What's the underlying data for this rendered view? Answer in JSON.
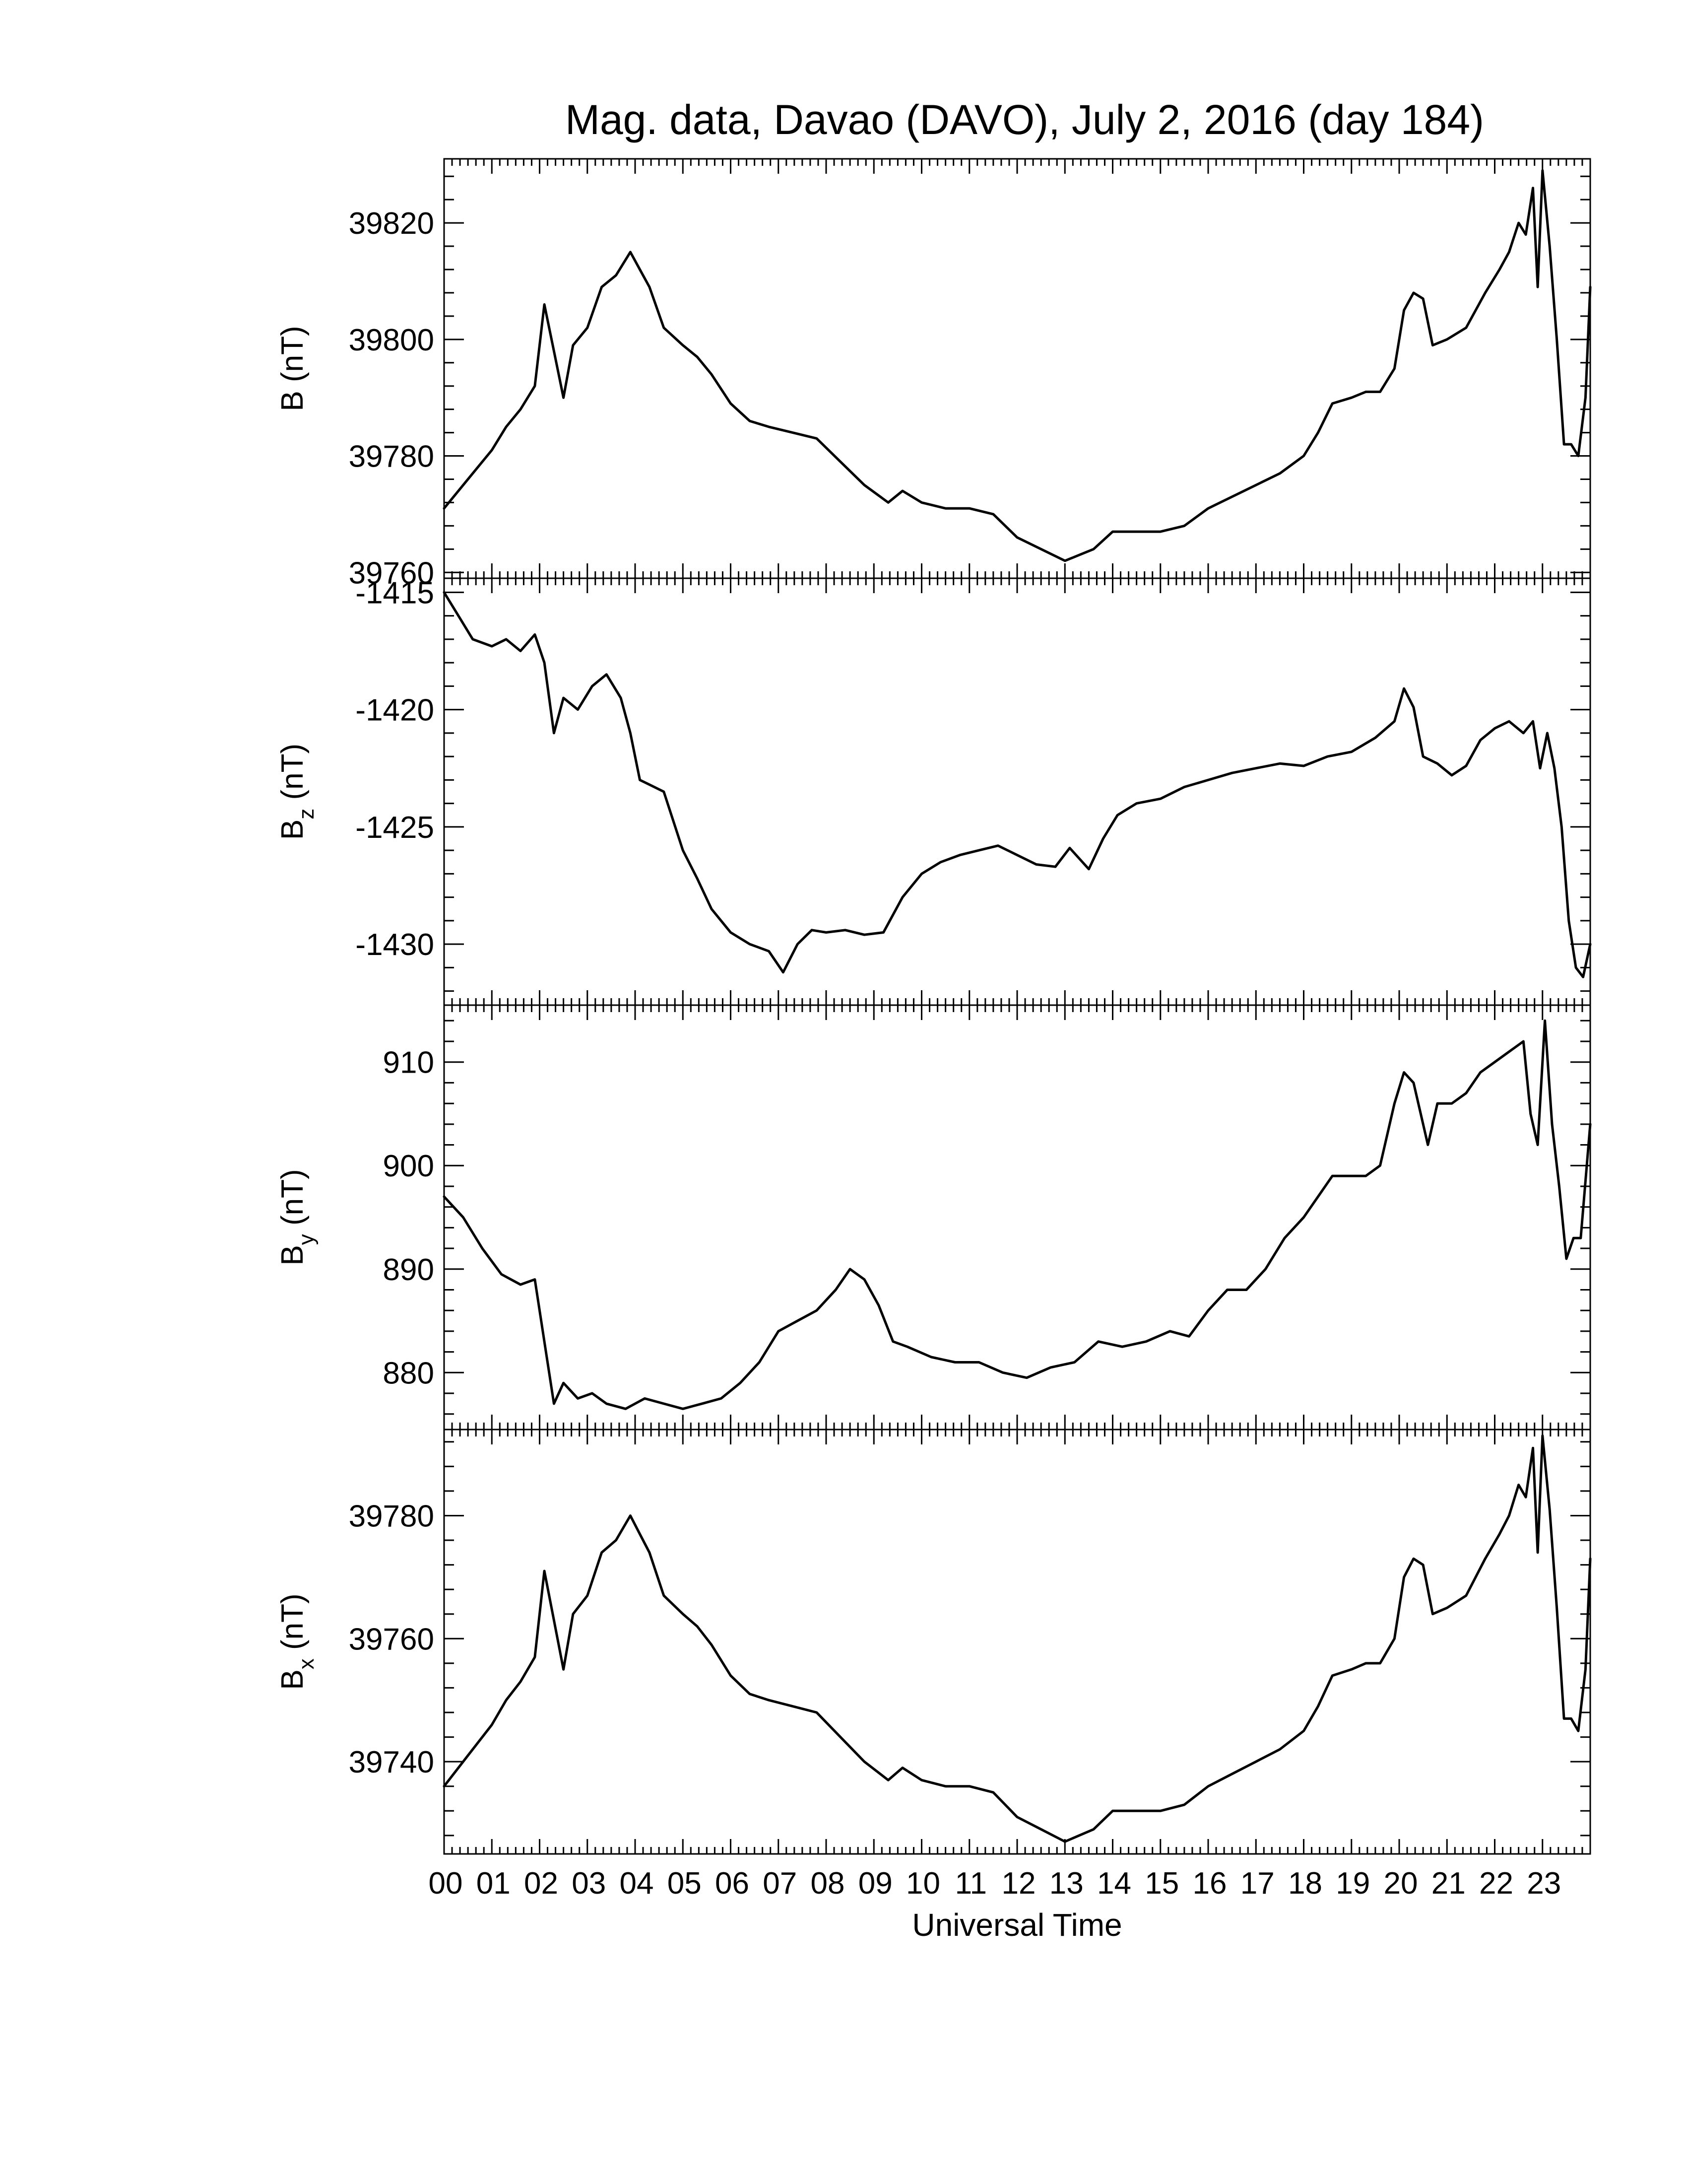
{
  "figure": {
    "title": "Mag. data, Davao (DAVO), July 2, 2016 (day 184)",
    "xlabel": "Universal Time",
    "x_tick_labels": [
      "00",
      "01",
      "02",
      "03",
      "04",
      "05",
      "06",
      "07",
      "08",
      "09",
      "10",
      "11",
      "12",
      "13",
      "14",
      "15",
      "16",
      "17",
      "18",
      "19",
      "20",
      "21",
      "22",
      "23"
    ]
  },
  "chart_data": [
    {
      "type": "line",
      "ylabel": "B (nT)",
      "xlim": [
        0,
        24
      ],
      "ylim": [
        39759,
        39831
      ],
      "yticks": [
        39760,
        39780,
        39800,
        39820
      ],
      "series": [
        {
          "x": [
            0,
            0.5,
            1,
            1.3,
            1.6,
            1.9,
            2.1,
            2.3,
            2.5,
            2.7,
            3.0,
            3.3,
            3.6,
            3.9,
            4.1,
            4.3,
            4.6,
            5.0,
            5.3,
            5.6,
            6.0,
            6.4,
            6.8,
            7.3,
            7.8,
            8.3,
            8.8,
            9.3,
            9.6,
            10,
            10.5,
            11,
            11.5,
            12,
            12.5,
            13,
            13.3,
            13.6,
            14,
            14.5,
            15,
            15.5,
            16,
            16.5,
            17,
            17.5,
            18,
            18.3,
            18.6,
            19,
            19.3,
            19.6,
            19.9,
            20.1,
            20.3,
            20.5,
            20.7,
            21,
            21.4,
            21.8,
            22.1,
            22.3,
            22.5,
            22.65,
            22.8,
            22.9,
            23.0,
            23.15,
            23.3,
            23.45,
            23.6,
            23.75,
            23.9,
            24
          ],
          "values": [
            39771,
            39776,
            39781,
            39785,
            39788,
            39792,
            39806,
            39798,
            39790,
            39799,
            39802,
            39809,
            39811,
            39815,
            39812,
            39809,
            39802,
            39799,
            39797,
            39794,
            39789,
            39786,
            39785,
            39784,
            39783,
            39779,
            39775,
            39772,
            39774,
            39772,
            39771,
            39771,
            39770,
            39766,
            39764,
            39762,
            39763,
            39764,
            39767,
            39767,
            39767,
            39768,
            39771,
            39773,
            39775,
            39777,
            39780,
            39784,
            39789,
            39790,
            39791,
            39791,
            39795,
            39805,
            39808,
            39807,
            39799,
            39800,
            39802,
            39808,
            39812,
            39815,
            39820,
            39818,
            39826,
            39809,
            39829,
            39816,
            39800,
            39782,
            39782,
            39780,
            39790,
            39809
          ]
        }
      ]
    },
    {
      "type": "line",
      "ylabel": "Bz (nT)",
      "xlim": [
        0,
        24
      ],
      "ylim": [
        -1432.6,
        -1414.4
      ],
      "yticks": [
        -1415,
        -1420,
        -1425,
        -1430
      ],
      "series": [
        {
          "x": [
            0,
            0.3,
            0.6,
            1.0,
            1.3,
            1.6,
            1.9,
            2.1,
            2.3,
            2.5,
            2.8,
            3.1,
            3.4,
            3.7,
            3.9,
            4.1,
            4.3,
            4.6,
            5.0,
            5.3,
            5.6,
            6.0,
            6.4,
            6.8,
            7.1,
            7.4,
            7.7,
            8.0,
            8.4,
            8.8,
            9.2,
            9.6,
            10,
            10.4,
            10.8,
            11.2,
            11.6,
            12,
            12.4,
            12.8,
            13.1,
            13.5,
            13.8,
            14.1,
            14.5,
            15,
            15.5,
            16,
            16.5,
            17,
            17.5,
            18,
            18.5,
            19,
            19.5,
            19.9,
            20.1,
            20.3,
            20.5,
            20.8,
            21.1,
            21.4,
            21.7,
            22.0,
            22.3,
            22.6,
            22.8,
            22.95,
            23.1,
            23.25,
            23.4,
            23.55,
            23.7,
            23.85,
            24
          ],
          "values": [
            -1415,
            -1416,
            -1417,
            -1417.3,
            -1417,
            -1417.5,
            -1416.8,
            -1418,
            -1421,
            -1419.5,
            -1420,
            -1419,
            -1418.5,
            -1419.5,
            -1421,
            -1423,
            -1423.2,
            -1423.5,
            -1426,
            -1427.2,
            -1428.5,
            -1429.5,
            -1430,
            -1430.3,
            -1431.2,
            -1430,
            -1429.4,
            -1429.5,
            -1429.4,
            -1429.6,
            -1429.5,
            -1428,
            -1427,
            -1426.5,
            -1426.2,
            -1426,
            -1425.8,
            -1426.2,
            -1426.6,
            -1426.7,
            -1425.9,
            -1426.8,
            -1425.5,
            -1424.5,
            -1424,
            -1423.8,
            -1423.3,
            -1423,
            -1422.7,
            -1422.5,
            -1422.3,
            -1422.4,
            -1422,
            -1421.8,
            -1421.2,
            -1420.5,
            -1419.1,
            -1419.9,
            -1422,
            -1422.3,
            -1422.8,
            -1422.4,
            -1421.3,
            -1420.8,
            -1420.5,
            -1421,
            -1420.5,
            -1422.5,
            -1421,
            -1422.5,
            -1425,
            -1429,
            -1431,
            -1431.4,
            -1430
          ]
        }
      ]
    },
    {
      "type": "line",
      "ylabel": "By (nT)",
      "xlim": [
        0,
        24
      ],
      "ylim": [
        874.5,
        915.5
      ],
      "yticks": [
        880,
        890,
        900,
        910
      ],
      "series": [
        {
          "x": [
            0,
            0.4,
            0.8,
            1.2,
            1.6,
            1.9,
            2.1,
            2.3,
            2.5,
            2.8,
            3.1,
            3.4,
            3.8,
            4.2,
            4.6,
            5.0,
            5.4,
            5.8,
            6.2,
            6.6,
            7.0,
            7.4,
            7.8,
            8.2,
            8.5,
            8.8,
            9.1,
            9.4,
            9.7,
            10.2,
            10.7,
            11.2,
            11.7,
            12.2,
            12.7,
            13.2,
            13.7,
            14.2,
            14.7,
            15.2,
            15.6,
            16,
            16.4,
            16.8,
            17.2,
            17.6,
            18.0,
            18.3,
            18.6,
            19.0,
            19.3,
            19.6,
            19.9,
            20.1,
            20.3,
            20.6,
            20.8,
            21.1,
            21.4,
            21.7,
            22.0,
            22.3,
            22.6,
            22.75,
            22.9,
            23.05,
            23.2,
            23.35,
            23.5,
            23.65,
            23.8,
            24
          ],
          "values": [
            897,
            895,
            892,
            889.5,
            888.5,
            889,
            883,
            877,
            879,
            877.5,
            878,
            877,
            876.5,
            877.5,
            877,
            876.5,
            877,
            877.5,
            879,
            881,
            884,
            885,
            886,
            888,
            890,
            889,
            886.5,
            883,
            882.5,
            881.5,
            881,
            881,
            880,
            879.5,
            880.5,
            881,
            883,
            882.5,
            883,
            884,
            883.5,
            886,
            888,
            888,
            890,
            893,
            895,
            897,
            899,
            899,
            899,
            900,
            906,
            909,
            908,
            902,
            906,
            906,
            907,
            909,
            910,
            911,
            912,
            905,
            902,
            914,
            904,
            898,
            891,
            893,
            893,
            904
          ]
        }
      ]
    },
    {
      "type": "line",
      "ylabel": "Bx (nT)",
      "xlim": [
        0,
        24
      ],
      "ylim": [
        39725,
        39794
      ],
      "yticks": [
        39740,
        39760,
        39780
      ],
      "series": [
        {
          "x": [
            0,
            0.5,
            1,
            1.3,
            1.6,
            1.9,
            2.1,
            2.3,
            2.5,
            2.7,
            3.0,
            3.3,
            3.6,
            3.9,
            4.1,
            4.3,
            4.6,
            5.0,
            5.3,
            5.6,
            6.0,
            6.4,
            6.8,
            7.3,
            7.8,
            8.3,
            8.8,
            9.3,
            9.6,
            10,
            10.5,
            11,
            11.5,
            12,
            12.5,
            13,
            13.3,
            13.6,
            14,
            14.5,
            15,
            15.5,
            16,
            16.5,
            17,
            17.5,
            18,
            18.3,
            18.6,
            19,
            19.3,
            19.6,
            19.9,
            20.1,
            20.3,
            20.5,
            20.7,
            21,
            21.4,
            21.8,
            22.1,
            22.3,
            22.5,
            22.65,
            22.8,
            22.9,
            23.0,
            23.15,
            23.3,
            23.45,
            23.6,
            23.75,
            23.9,
            24
          ],
          "values": [
            39736,
            39741,
            39746,
            39750,
            39753,
            39757,
            39771,
            39763,
            39755,
            39764,
            39767,
            39774,
            39776,
            39780,
            39777,
            39774,
            39767,
            39764,
            39762,
            39759,
            39754,
            39751,
            39750,
            39749,
            39748,
            39744,
            39740,
            39737,
            39739,
            39737,
            39736,
            39736,
            39735,
            39731,
            39729,
            39727,
            39728,
            39729,
            39732,
            39732,
            39732,
            39733,
            39736,
            39738,
            39740,
            39742,
            39745,
            39749,
            39754,
            39755,
            39756,
            39756,
            39760,
            39770,
            39773,
            39772,
            39764,
            39765,
            39767,
            39773,
            39777,
            39780,
            39785,
            39783,
            39791,
            39774,
            39793,
            39781,
            39765,
            39747,
            39747,
            39745,
            39755,
            39773
          ]
        }
      ]
    }
  ]
}
